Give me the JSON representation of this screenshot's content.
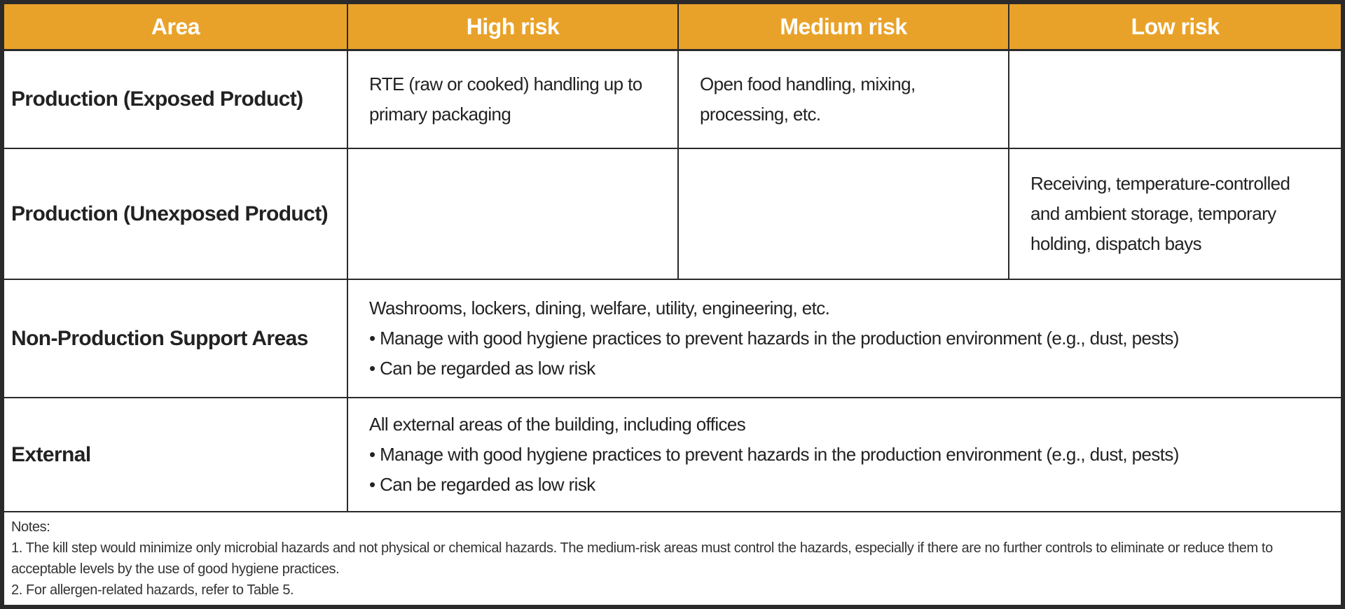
{
  "table": {
    "header": [
      "Area",
      "High risk",
      "Medium risk",
      "Low risk"
    ],
    "rows": [
      {
        "area": "Production (Exposed Product)",
        "high": "RTE (raw or cooked) handling up to primary packaging",
        "medium": "Open food handling, mixing, processing, etc."
      },
      {
        "area": "Production (Unexposed Product)",
        "low": "Receiving, temperature-controlled and ambient storage, temporary holding, dispatch bays"
      },
      {
        "area": "Non-Production Support Areas",
        "all": [
          "Washrooms, lockers, dining, welfare, utility, engineering, etc.",
          "• Manage with good hygiene practices to prevent hazards in the production environment (e.g., dust, pests)",
          "• Can be regarded as low risk"
        ]
      },
      {
        "area": "External",
        "all": [
          "All external areas of the building, including offices",
          "• Manage with good hygiene practices to prevent hazards in the production environment (e.g., dust, pests)",
          "• Can be regarded as low risk"
        ]
      }
    ],
    "notes": {
      "title": "Notes:",
      "items": [
        "1. The kill step would minimize only microbial hazards and not physical or chemical hazards. The medium-risk areas must control the hazards, especially if there are no further controls to eliminate or reduce them to acceptable levels by the use of good hygiene practices.",
        "2. For allergen-related hazards, refer to Table 5."
      ]
    }
  }
}
